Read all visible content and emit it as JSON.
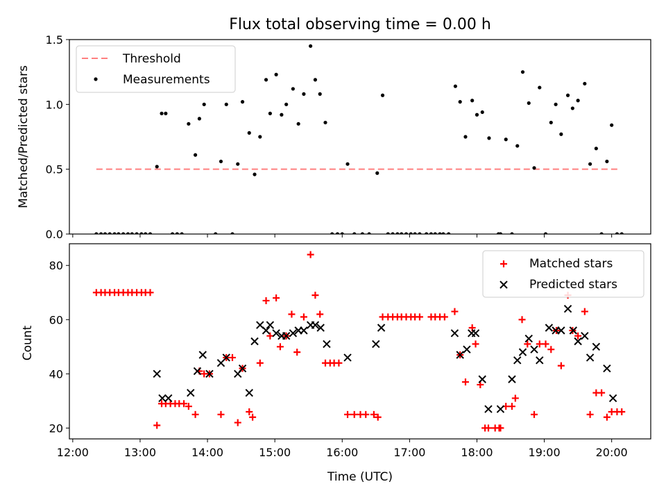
{
  "chart_data": [
    {
      "type": "scatter",
      "title": "Flux total observing time = 0.00 h",
      "xlabel": "",
      "ylabel": "Matched/Predicted stars",
      "xlim_hours": [
        11.95,
        20.58
      ],
      "ylim": [
        0,
        1.5
      ],
      "yticks": [
        0.0,
        0.5,
        1.0,
        1.5
      ],
      "ytick_labels": [
        "0.0",
        "0.5",
        "1.0",
        "1.5"
      ],
      "legend_position": "upper-left",
      "series": [
        {
          "name": "Threshold",
          "kind": "line",
          "style": "dashed",
          "color": "#ff7f7f",
          "x": [
            12.35,
            20.12
          ],
          "y": [
            0.5,
            0.5
          ]
        },
        {
          "name": "Measurements",
          "kind": "scatter",
          "color": "#000000",
          "x": [
            12.35,
            12.42,
            12.48,
            12.55,
            12.62,
            12.68,
            12.75,
            12.82,
            12.88,
            12.95,
            13.02,
            13.08,
            13.15,
            13.25,
            13.32,
            13.38,
            13.48,
            13.55,
            13.62,
            13.72,
            13.82,
            13.88,
            13.95,
            14.12,
            14.2,
            14.28,
            14.37,
            14.45,
            14.52,
            14.62,
            14.7,
            14.78,
            14.87,
            14.93,
            15.02,
            15.1,
            15.17,
            15.27,
            15.35,
            15.43,
            15.53,
            15.6,
            15.67,
            15.75,
            15.85,
            15.93,
            16.0,
            16.08,
            16.18,
            16.3,
            16.4,
            16.52,
            16.6,
            16.68,
            16.75,
            16.82,
            16.88,
            16.95,
            17.02,
            17.08,
            17.15,
            17.25,
            17.32,
            17.38,
            17.45,
            17.5,
            17.58,
            17.68,
            17.75,
            17.83,
            17.93,
            18.0,
            18.08,
            18.18,
            18.32,
            18.35,
            18.43,
            18.52,
            18.6,
            18.68,
            18.77,
            18.85,
            18.93,
            19.02,
            19.1,
            19.17,
            19.25,
            19.35,
            19.42,
            19.5,
            19.6,
            19.68,
            19.77,
            19.85,
            19.93,
            20.0,
            20.08,
            20.15
          ],
          "y": [
            0,
            0,
            0,
            0,
            0,
            0,
            0,
            0,
            0,
            0,
            0,
            0,
            0,
            0.52,
            0.93,
            0.93,
            0,
            0,
            0,
            0.85,
            0.61,
            0.89,
            1.0,
            0,
            0.56,
            1.0,
            0,
            0.54,
            1.02,
            0.78,
            0.46,
            0.75,
            1.19,
            0.93,
            1.23,
            0.92,
            1.0,
            1.12,
            0.85,
            1.08,
            1.45,
            1.19,
            1.08,
            0.86,
            0,
            0,
            0,
            0.54,
            0,
            0,
            0,
            0.47,
            1.07,
            0,
            0,
            0,
            0,
            0,
            0,
            0,
            0,
            0,
            0,
            0,
            0,
            0,
            0,
            1.14,
            1.02,
            0.75,
            1.03,
            0.92,
            0.94,
            0.74,
            0,
            0,
            0.73,
            0,
            0.68,
            1.25,
            1.01,
            0.51,
            1.13,
            0,
            0.86,
            1.0,
            0.77,
            1.07,
            0.97,
            1.03,
            1.16,
            0.54,
            0.66,
            0,
            0.56,
            0.84,
            0,
            0
          ]
        }
      ]
    },
    {
      "type": "scatter",
      "title": "",
      "xlabel": "Time (UTC)",
      "ylabel": "Count",
      "xlim_hours": [
        11.95,
        20.58
      ],
      "ylim": [
        16,
        88
      ],
      "yticks": [
        20,
        40,
        60,
        80
      ],
      "ytick_labels": [
        "20",
        "40",
        "60",
        "80"
      ],
      "xticks_hours": [
        12,
        13,
        14,
        15,
        16,
        17,
        18,
        19,
        20
      ],
      "xtick_labels": [
        "12:00",
        "13:00",
        "14:00",
        "15:00",
        "16:00",
        "17:00",
        "18:00",
        "19:00",
        "20:00"
      ],
      "legend_position": "upper-right",
      "series": [
        {
          "name": "Matched stars",
          "marker": "plus",
          "color": "#ff0000",
          "x": [
            12.35,
            12.42,
            12.48,
            12.55,
            12.62,
            12.68,
            12.75,
            12.82,
            12.88,
            12.95,
            13.02,
            13.08,
            13.15,
            13.25,
            13.32,
            13.38,
            13.45,
            13.52,
            13.58,
            13.65,
            13.72,
            13.82,
            13.88,
            13.95,
            14.03,
            14.2,
            14.28,
            14.37,
            14.45,
            14.52,
            14.62,
            14.67,
            14.78,
            14.87,
            14.93,
            15.02,
            15.08,
            15.17,
            15.25,
            15.33,
            15.43,
            15.53,
            15.6,
            15.67,
            15.75,
            15.82,
            15.88,
            15.95,
            16.08,
            16.18,
            16.27,
            16.35,
            16.47,
            16.53,
            16.6,
            16.68,
            16.75,
            16.82,
            16.88,
            16.95,
            17.02,
            17.08,
            17.15,
            17.32,
            17.38,
            17.45,
            17.52,
            17.67,
            17.75,
            17.83,
            17.93,
            17.98,
            18.05,
            18.12,
            18.17,
            18.27,
            18.33,
            18.35,
            18.43,
            18.52,
            18.57,
            18.67,
            18.75,
            18.85,
            18.93,
            19.02,
            19.1,
            19.18,
            19.25,
            19.35,
            19.42,
            19.5,
            19.6,
            19.68,
            19.77,
            19.85,
            19.93,
            20.0,
            20.08,
            20.15
          ],
          "y": [
            70,
            70,
            70,
            70,
            70,
            70,
            70,
            70,
            70,
            70,
            70,
            70,
            70,
            21,
            29,
            29,
            29,
            29,
            29,
            29,
            28,
            25,
            41,
            40,
            40,
            25,
            46,
            46,
            22,
            42,
            26,
            24,
            44,
            67,
            54,
            68,
            50,
            54,
            62,
            48,
            61,
            84,
            69,
            62,
            44,
            44,
            44,
            44,
            25,
            25,
            25,
            25,
            25,
            24,
            61,
            61,
            61,
            61,
            61,
            61,
            61,
            61,
            61,
            61,
            61,
            61,
            61,
            63,
            47,
            37,
            57,
            51,
            36,
            20,
            20,
            20,
            20,
            20,
            28,
            28,
            31,
            60,
            51,
            25,
            51,
            51,
            49,
            56,
            43,
            69,
            56,
            54,
            63,
            25,
            33,
            33,
            24,
            26,
            26,
            26
          ]
        },
        {
          "name": "Predicted stars",
          "marker": "x",
          "color": "#000000",
          "x": [
            13.25,
            13.33,
            13.42,
            13.75,
            13.85,
            13.93,
            14.03,
            14.2,
            14.28,
            14.45,
            14.52,
            14.62,
            14.7,
            14.78,
            14.87,
            14.93,
            15.02,
            15.1,
            15.17,
            15.27,
            15.35,
            15.43,
            15.53,
            15.6,
            15.68,
            15.77,
            16.08,
            16.5,
            16.58,
            17.67,
            17.75,
            17.85,
            17.92,
            17.98,
            18.08,
            18.17,
            18.35,
            18.52,
            18.6,
            18.68,
            18.77,
            18.85,
            18.93,
            19.07,
            19.17,
            19.25,
            19.35,
            19.43,
            19.5,
            19.6,
            19.68,
            19.77,
            19.93,
            20.02
          ],
          "y": [
            40,
            31,
            31,
            33,
            41,
            47,
            40,
            44,
            46,
            40,
            42,
            33,
            52,
            58,
            56,
            58,
            55,
            54,
            54,
            55,
            56,
            56,
            58,
            58,
            57,
            51,
            46,
            51,
            57,
            55,
            47,
            49,
            55,
            55,
            38,
            27,
            27,
            38,
            45,
            48,
            53,
            49,
            45,
            57,
            56,
            56,
            64,
            56,
            52,
            54,
            46,
            50,
            42,
            31
          ]
        }
      ]
    }
  ]
}
